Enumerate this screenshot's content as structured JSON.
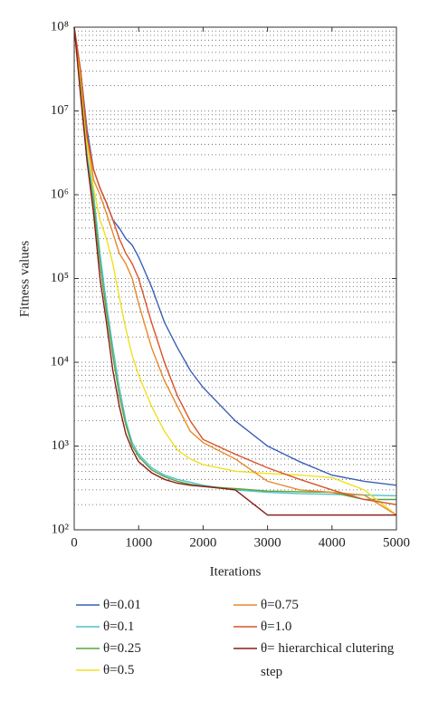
{
  "chart_data": {
    "type": "line",
    "x_label": "Iterations",
    "y_label": "Fitness values",
    "xlim": [
      0,
      5000
    ],
    "xticks": [
      0,
      1000,
      2000,
      3000,
      4000,
      5000
    ],
    "ylim": [
      100,
      100000000
    ],
    "log_y": true,
    "grid": "minor-dotted",
    "yticks": [
      {
        "value": 100,
        "label": "10²"
      },
      {
        "value": 1000,
        "label": "10³"
      },
      {
        "value": 10000,
        "label": "10⁴"
      },
      {
        "value": 100000,
        "label": "10⁵"
      },
      {
        "value": 1000000,
        "label": "10⁶"
      },
      {
        "value": 10000000,
        "label": "10⁷"
      },
      {
        "value": 100000000,
        "label": "10⁸"
      }
    ],
    "legend": "below",
    "x": [
      0,
      100,
      200,
      300,
      400,
      500,
      600,
      700,
      800,
      900,
      1000,
      1200,
      1400,
      1600,
      1800,
      2000,
      2500,
      3000,
      3500,
      4000,
      4500,
      5000
    ],
    "series": [
      {
        "name": "θ=0.01",
        "color": "#3b5fb8",
        "values": [
          100000000,
          30000000,
          6000000,
          2000000,
          1200000,
          800000,
          500000,
          400000,
          300000,
          250000,
          180000,
          80000,
          30000,
          15000,
          8000,
          5000,
          2000,
          1000,
          650,
          450,
          380,
          340
        ]
      },
      {
        "name": "θ=0.1",
        "color": "#4fc1c9",
        "values": [
          100000000,
          20000000,
          3000000,
          1000000,
          200000,
          50000,
          15000,
          5000,
          2000,
          1100,
          800,
          550,
          450,
          400,
          370,
          340,
          300,
          280,
          270,
          265,
          260,
          255
        ]
      },
      {
        "name": "θ=0.25",
        "color": "#5aa33c",
        "values": [
          100000000,
          20000000,
          2500000,
          800000,
          150000,
          40000,
          12000,
          4000,
          1800,
          1000,
          750,
          520,
          430,
          380,
          350,
          330,
          310,
          290,
          285,
          280,
          230,
          230
        ]
      },
      {
        "name": "θ=0.5",
        "color": "#f0e020",
        "values": [
          100000000,
          25000000,
          4000000,
          1200000,
          500000,
          300000,
          150000,
          60000,
          25000,
          12000,
          7000,
          3000,
          1500,
          900,
          700,
          600,
          500,
          470,
          450,
          420,
          300,
          150
        ]
      },
      {
        "name": "θ=0.75",
        "color": "#e8892a",
        "values": [
          100000000,
          30000000,
          5000000,
          1500000,
          1000000,
          600000,
          350000,
          200000,
          150000,
          100000,
          50000,
          15000,
          6000,
          3000,
          1500,
          1100,
          700,
          380,
          300,
          280,
          260,
          150
        ]
      },
      {
        "name": "θ=1.0",
        "color": "#d9532a",
        "values": [
          100000000,
          30000000,
          5000000,
          2000000,
          1200000,
          800000,
          500000,
          300000,
          200000,
          150000,
          100000,
          30000,
          10000,
          4000,
          2000,
          1200,
          800,
          550,
          400,
          300,
          230,
          200
        ]
      },
      {
        "name": "θ= hierarchical clutering step",
        "color": "#8b1a1a",
        "values": [
          100000000,
          15000000,
          2500000,
          600000,
          100000,
          30000,
          8000,
          3000,
          1400,
          900,
          650,
          480,
          400,
          360,
          340,
          330,
          300,
          150,
          150,
          150,
          150,
          150
        ]
      }
    ]
  }
}
